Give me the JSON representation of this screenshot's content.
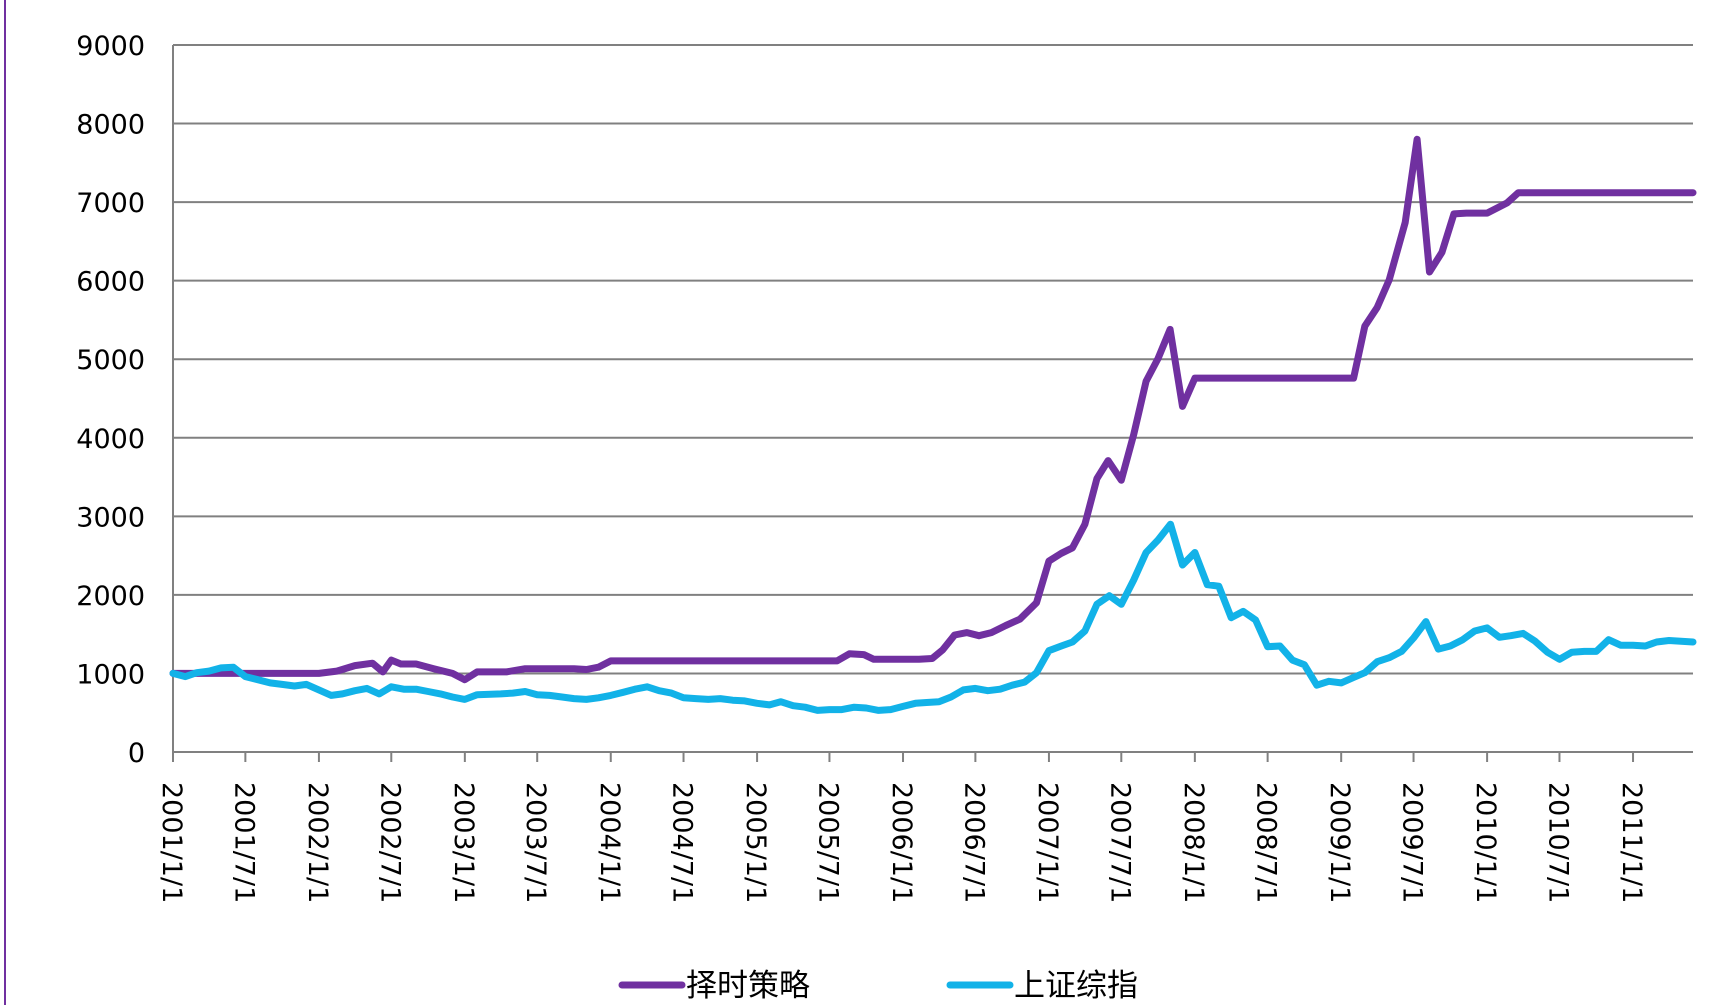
{
  "chart_data": {
    "type": "line",
    "title": "",
    "xlabel": "",
    "ylabel": "",
    "ylim": [
      0,
      9000
    ],
    "yticks": [
      0,
      1000,
      2000,
      3000,
      4000,
      5000,
      6000,
      7000,
      8000,
      9000
    ],
    "xlim": [
      "2001/1/1",
      "2011/5/31"
    ],
    "xtick_labels": [
      "2001/1/1",
      "2001/7/1",
      "2002/1/1",
      "2002/7/1",
      "2003/1/1",
      "2003/7/1",
      "2004/1/1",
      "2004/7/1",
      "2005/1/1",
      "2005/7/1",
      "2006/1/1",
      "2006/7/1",
      "2007/1/1",
      "2007/7/1",
      "2008/1/1",
      "2008/7/1",
      "2009/1/1",
      "2009/7/1",
      "2010/1/1",
      "2010/7/1",
      "2011/1/1"
    ],
    "grid": "horizontal",
    "legend_position": "bottom",
    "series": [
      {
        "name": "择时策略",
        "color": "#7030a0",
        "points": [
          [
            "2001/1/1",
            1000
          ],
          [
            "2001/3/1",
            1000
          ],
          [
            "2001/6/1",
            1000
          ],
          [
            "2001/9/1",
            1000
          ],
          [
            "2002/1/1",
            1000
          ],
          [
            "2002/2/15",
            1030
          ],
          [
            "2002/4/1",
            1100
          ],
          [
            "2002/5/15",
            1130
          ],
          [
            "2002/6/10",
            1020
          ],
          [
            "2002/7/1",
            1170
          ],
          [
            "2002/7/25",
            1120
          ],
          [
            "2002/9/1",
            1120
          ],
          [
            "2002/10/15",
            1060
          ],
          [
            "2002/12/1",
            1000
          ],
          [
            "2003/1/1",
            920
          ],
          [
            "2003/2/1",
            1020
          ],
          [
            "2003/4/15",
            1020
          ],
          [
            "2003/6/1",
            1060
          ],
          [
            "2003/8/1",
            1060
          ],
          [
            "2003/10/1",
            1060
          ],
          [
            "2003/11/1",
            1050
          ],
          [
            "2003/12/1",
            1080
          ],
          [
            "2004/1/1",
            1160
          ],
          [
            "2004/6/1",
            1160
          ],
          [
            "2005/1/1",
            1160
          ],
          [
            "2005/6/1",
            1160
          ],
          [
            "2005/7/20",
            1160
          ],
          [
            "2005/8/20",
            1250
          ],
          [
            "2005/9/25",
            1240
          ],
          [
            "2005/10/20",
            1180
          ],
          [
            "2005/12/1",
            1180
          ],
          [
            "2006/2/10",
            1180
          ],
          [
            "2006/3/15",
            1190
          ],
          [
            "2006/4/10",
            1300
          ],
          [
            "2006/5/10",
            1490
          ],
          [
            "2006/6/10",
            1520
          ],
          [
            "2006/7/10",
            1480
          ],
          [
            "2006/8/10",
            1520
          ],
          [
            "2006/9/15",
            1610
          ],
          [
            "2006/10/20",
            1690
          ],
          [
            "2006/12/1",
            1900
          ],
          [
            "2007/1/1",
            2430
          ],
          [
            "2007/2/1",
            2530
          ],
          [
            "2007/3/1",
            2600
          ],
          [
            "2007/4/1",
            2900
          ],
          [
            "2007/5/1",
            3480
          ],
          [
            "2007/5/29",
            3710
          ],
          [
            "2007/7/1",
            3460
          ],
          [
            "2007/8/1",
            4040
          ],
          [
            "2007/9/1",
            4720
          ],
          [
            "2007/10/1",
            5010
          ],
          [
            "2007/10/31",
            5380
          ],
          [
            "2007/12/1",
            4400
          ],
          [
            "2008/1/1",
            4760
          ],
          [
            "2008/6/1",
            4760
          ],
          [
            "2009/1/1",
            4760
          ],
          [
            "2009/2/1",
            4760
          ],
          [
            "2009/3/1",
            5420
          ],
          [
            "2009/4/1",
            5660
          ],
          [
            "2009/5/1",
            6010
          ],
          [
            "2009/6/10",
            6740
          ],
          [
            "2009/7/10",
            7800
          ],
          [
            "2009/8/10",
            6110
          ],
          [
            "2009/9/10",
            6360
          ],
          [
            "2009/10/10",
            6850
          ],
          [
            "2009/11/10",
            6860
          ],
          [
            "2010/1/1",
            6860
          ],
          [
            "2010/2/20",
            6990
          ],
          [
            "2010/3/20",
            7120
          ],
          [
            "2011/5/31",
            7120
          ]
        ]
      },
      {
        "name": "上证综指",
        "color": "#12b2e8",
        "points": [
          [
            "2001/1/1",
            1000
          ],
          [
            "2001/2/1",
            960
          ],
          [
            "2001/3/1",
            1010
          ],
          [
            "2001/4/1",
            1030
          ],
          [
            "2001/5/1",
            1070
          ],
          [
            "2001/6/1",
            1080
          ],
          [
            "2001/7/1",
            960
          ],
          [
            "2001/8/1",
            920
          ],
          [
            "2001/9/1",
            880
          ],
          [
            "2001/10/1",
            860
          ],
          [
            "2001/11/1",
            840
          ],
          [
            "2001/12/1",
            860
          ],
          [
            "2002/1/1",
            790
          ],
          [
            "2002/2/1",
            720
          ],
          [
            "2002/3/1",
            740
          ],
          [
            "2002/4/1",
            780
          ],
          [
            "2002/5/1",
            810
          ],
          [
            "2002/6/1",
            740
          ],
          [
            "2002/7/1",
            830
          ],
          [
            "2002/8/1",
            800
          ],
          [
            "2002/9/1",
            800
          ],
          [
            "2002/10/1",
            770
          ],
          [
            "2002/11/1",
            740
          ],
          [
            "2002/12/1",
            700
          ],
          [
            "2003/1/1",
            670
          ],
          [
            "2003/2/1",
            730
          ],
          [
            "2003/4/1",
            740
          ],
          [
            "2003/5/1",
            750
          ],
          [
            "2003/6/1",
            770
          ],
          [
            "2003/7/1",
            730
          ],
          [
            "2003/8/1",
            720
          ],
          [
            "2003/9/1",
            700
          ],
          [
            "2003/10/1",
            680
          ],
          [
            "2003/11/1",
            670
          ],
          [
            "2003/12/1",
            690
          ],
          [
            "2004/1/1",
            720
          ],
          [
            "2004/2/1",
            760
          ],
          [
            "2004/3/1",
            800
          ],
          [
            "2004/4/1",
            830
          ],
          [
            "2004/5/1",
            780
          ],
          [
            "2004/6/1",
            750
          ],
          [
            "2004/7/1",
            690
          ],
          [
            "2004/8/1",
            680
          ],
          [
            "2004/9/1",
            670
          ],
          [
            "2004/10/1",
            680
          ],
          [
            "2004/11/1",
            660
          ],
          [
            "2004/12/1",
            650
          ],
          [
            "2005/1/1",
            620
          ],
          [
            "2005/2/1",
            600
          ],
          [
            "2005/3/1",
            640
          ],
          [
            "2005/4/1",
            590
          ],
          [
            "2005/5/1",
            570
          ],
          [
            "2005/6/1",
            530
          ],
          [
            "2005/7/1",
            540
          ],
          [
            "2005/8/1",
            540
          ],
          [
            "2005/9/1",
            570
          ],
          [
            "2005/10/1",
            560
          ],
          [
            "2005/11/1",
            530
          ],
          [
            "2005/12/1",
            540
          ],
          [
            "2006/1/1",
            580
          ],
          [
            "2006/2/1",
            620
          ],
          [
            "2006/3/1",
            630
          ],
          [
            "2006/4/1",
            640
          ],
          [
            "2006/5/1",
            700
          ],
          [
            "2006/6/1",
            790
          ],
          [
            "2006/7/1",
            810
          ],
          [
            "2006/8/1",
            780
          ],
          [
            "2006/9/1",
            800
          ],
          [
            "2006/10/1",
            850
          ],
          [
            "2006/11/1",
            890
          ],
          [
            "2006/12/1",
            1010
          ],
          [
            "2007/1/1",
            1290
          ],
          [
            "2007/2/1",
            1350
          ],
          [
            "2007/3/1",
            1400
          ],
          [
            "2007/4/1",
            1540
          ],
          [
            "2007/5/1",
            1880
          ],
          [
            "2007/6/1",
            1990
          ],
          [
            "2007/7/1",
            1880
          ],
          [
            "2007/8/1",
            2190
          ],
          [
            "2007/9/1",
            2540
          ],
          [
            "2007/10/1",
            2700
          ],
          [
            "2007/11/1",
            2900
          ],
          [
            "2007/12/1",
            2380
          ],
          [
            "2008/1/1",
            2540
          ],
          [
            "2008/2/1",
            2130
          ],
          [
            "2008/3/1",
            2110
          ],
          [
            "2008/4/1",
            1710
          ],
          [
            "2008/5/1",
            1790
          ],
          [
            "2008/6/1",
            1680
          ],
          [
            "2008/7/1",
            1340
          ],
          [
            "2008/8/1",
            1350
          ],
          [
            "2008/9/1",
            1170
          ],
          [
            "2008/10/1",
            1110
          ],
          [
            "2008/11/1",
            850
          ],
          [
            "2008/12/1",
            900
          ],
          [
            "2009/1/1",
            880
          ],
          [
            "2009/2/1",
            950
          ],
          [
            "2009/3/1",
            1010
          ],
          [
            "2009/4/1",
            1150
          ],
          [
            "2009/5/1",
            1200
          ],
          [
            "2009/6/1",
            1280
          ],
          [
            "2009/7/1",
            1450
          ],
          [
            "2009/8/1",
            1660
          ],
          [
            "2009/9/1",
            1310
          ],
          [
            "2009/10/1",
            1350
          ],
          [
            "2009/11/1",
            1430
          ],
          [
            "2009/12/1",
            1540
          ],
          [
            "2010/1/1",
            1580
          ],
          [
            "2010/2/1",
            1460
          ],
          [
            "2010/3/1",
            1480
          ],
          [
            "2010/4/1",
            1510
          ],
          [
            "2010/5/1",
            1410
          ],
          [
            "2010/6/1",
            1270
          ],
          [
            "2010/7/1",
            1180
          ],
          [
            "2010/8/1",
            1270
          ],
          [
            "2010/9/1",
            1280
          ],
          [
            "2010/10/1",
            1280
          ],
          [
            "2010/11/1",
            1430
          ],
          [
            "2010/12/1",
            1360
          ],
          [
            "2011/1/1",
            1360
          ],
          [
            "2011/2/1",
            1350
          ],
          [
            "2011/3/1",
            1400
          ],
          [
            "2011/4/1",
            1420
          ],
          [
            "2011/5/31",
            1400
          ]
        ]
      }
    ]
  }
}
